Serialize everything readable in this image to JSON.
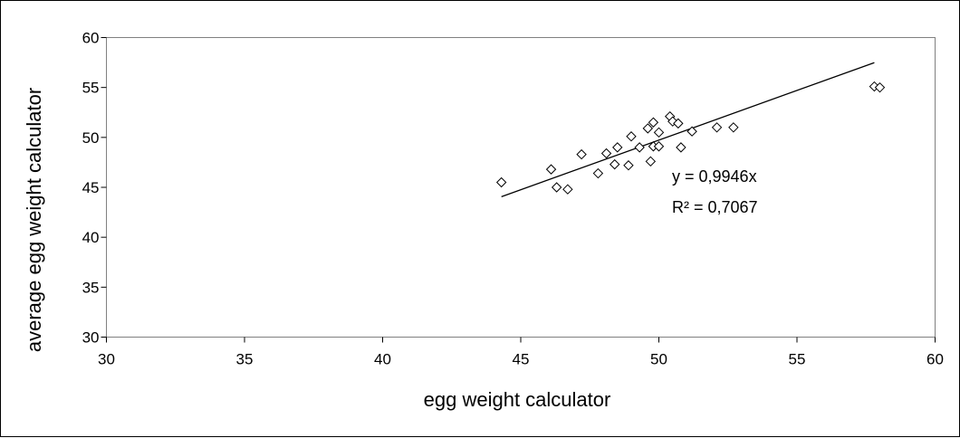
{
  "chart_data": {
    "type": "scatter",
    "title": "",
    "xlabel": "egg weight calculator",
    "ylabel": "average egg weight calculator",
    "xlim": [
      30,
      60
    ],
    "ylim": [
      30,
      60
    ],
    "x_ticks": [
      30,
      35,
      40,
      45,
      50,
      55,
      60
    ],
    "y_ticks": [
      30,
      35,
      40,
      45,
      50,
      55,
      60
    ],
    "grid": false,
    "legend": "none",
    "marker": "diamond",
    "colors": {
      "plot_border": "#808080",
      "markers": "#000000",
      "trendline": "#000000",
      "background": "#ffffff"
    },
    "series": [
      {
        "points": [
          {
            "x": 44.3,
            "y": 45.5
          },
          {
            "x": 46.1,
            "y": 46.8
          },
          {
            "x": 46.3,
            "y": 45.0
          },
          {
            "x": 46.7,
            "y": 44.8
          },
          {
            "x": 47.2,
            "y": 48.3
          },
          {
            "x": 47.8,
            "y": 46.4
          },
          {
            "x": 48.1,
            "y": 48.4
          },
          {
            "x": 48.4,
            "y": 47.3
          },
          {
            "x": 48.5,
            "y": 49.0
          },
          {
            "x": 48.9,
            "y": 47.2
          },
          {
            "x": 49.0,
            "y": 50.1
          },
          {
            "x": 49.3,
            "y": 49.0
          },
          {
            "x": 49.6,
            "y": 50.9
          },
          {
            "x": 49.7,
            "y": 47.6
          },
          {
            "x": 49.8,
            "y": 51.5
          },
          {
            "x": 49.8,
            "y": 49.1
          },
          {
            "x": 50.0,
            "y": 50.5
          },
          {
            "x": 50.0,
            "y": 49.1
          },
          {
            "x": 50.4,
            "y": 52.1
          },
          {
            "x": 50.5,
            "y": 51.6
          },
          {
            "x": 50.7,
            "y": 51.4
          },
          {
            "x": 50.8,
            "y": 49.0
          },
          {
            "x": 51.2,
            "y": 50.6
          },
          {
            "x": 52.1,
            "y": 51.0
          },
          {
            "x": 52.7,
            "y": 51.0
          },
          {
            "x": 57.8,
            "y": 55.1
          },
          {
            "x": 58.0,
            "y": 55.0
          }
        ]
      }
    ],
    "trendline": {
      "slope": 0.9946,
      "intercept": 0,
      "x_range": [
        44.3,
        57.8
      ],
      "equation_label": "y = 0,9946x",
      "r2_label": "R² = 0,7067"
    }
  }
}
